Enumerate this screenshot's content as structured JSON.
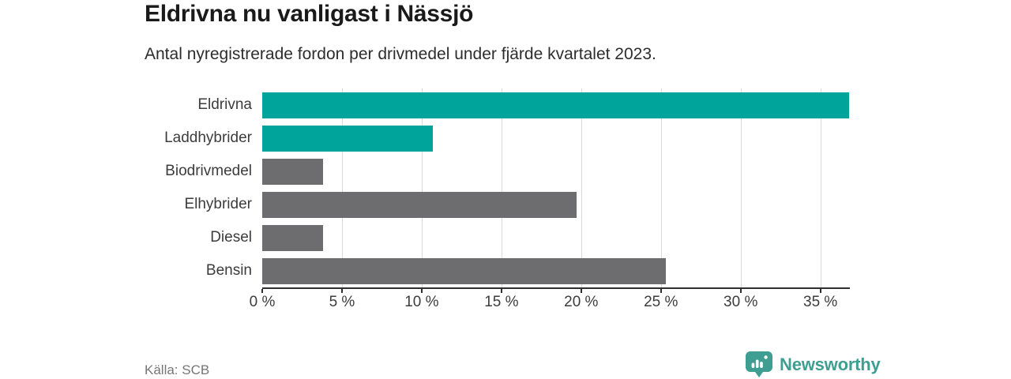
{
  "chart_data": {
    "type": "bar",
    "orientation": "horizontal",
    "title": "Eldrivna nu vanligast i Nässjö",
    "subtitle": "Antal nyregistrerade fordon per drivmedel under fjärde kvartalet 2023.",
    "categories": [
      "Eldrivna",
      "Laddhybrider",
      "Biodrivmedel",
      "Elhybrider",
      "Diesel",
      "Bensin"
    ],
    "values": [
      36.8,
      10.7,
      3.8,
      19.7,
      3.8,
      25.3
    ],
    "highlighted": [
      true,
      true,
      false,
      false,
      false,
      false
    ],
    "unit": "%",
    "xlim": [
      0,
      36.8
    ],
    "xticks": [
      0,
      5,
      10,
      15,
      20,
      25,
      30,
      35
    ],
    "xtick_labels": [
      "0 %",
      "5 %",
      "10 %",
      "15 %",
      "20 %",
      "25 %",
      "30 %",
      "35 %"
    ],
    "grid": "vertical-gridlines-at-ticks-except-zero",
    "legend": "none",
    "colors": {
      "highlight": "#00a49a",
      "default": "#6d6d70",
      "gridline": "#d9d9d9",
      "axis": "#2f2f2f"
    }
  },
  "footer": {
    "source": "Källa: SCB",
    "brand": "Newsworthy",
    "brand_color": "#3f9e92"
  }
}
